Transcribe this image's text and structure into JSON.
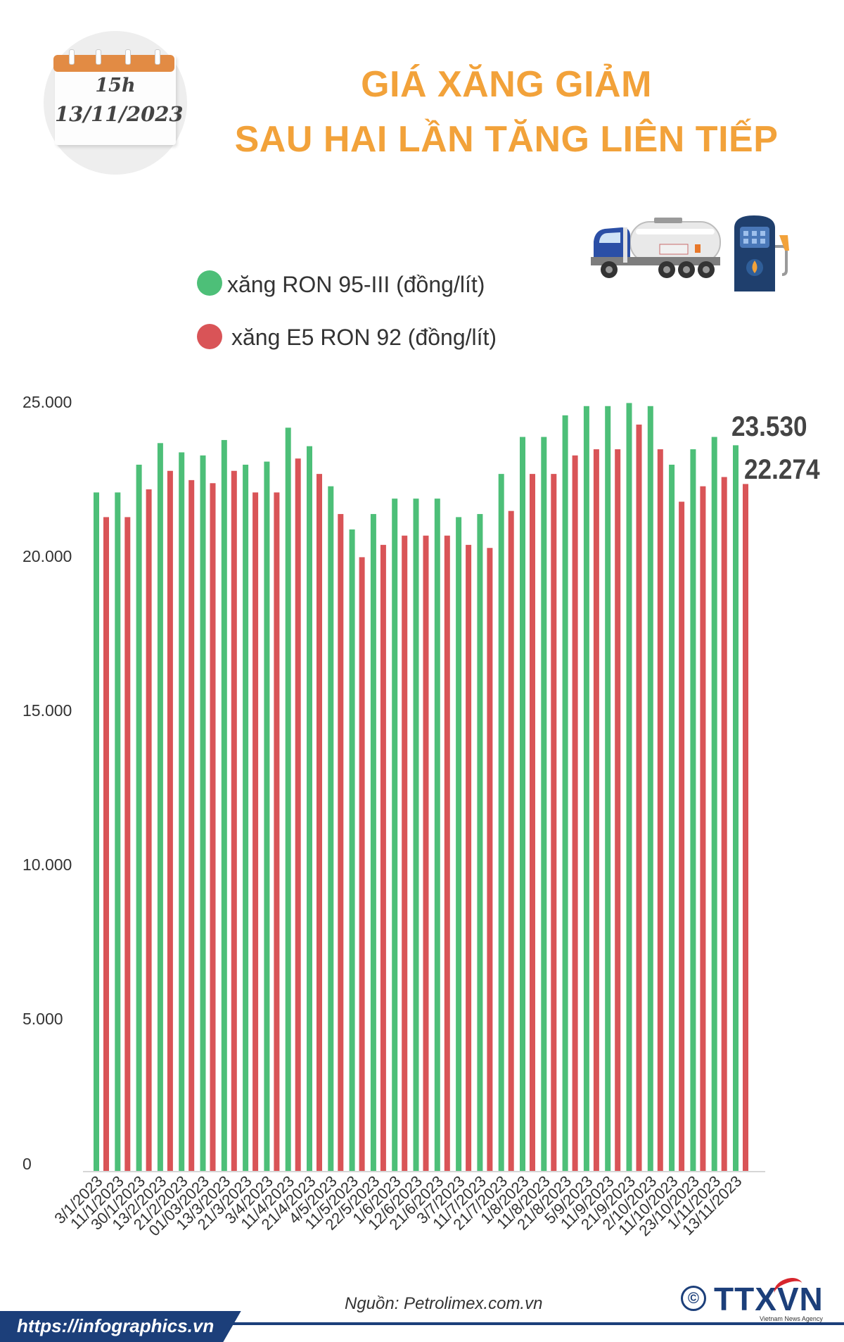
{
  "calendar": {
    "time": "15h",
    "date": "13/11/2023"
  },
  "title": {
    "line1": "GIÁ XĂNG GIẢM",
    "line2": "SAU HAI LẦN TĂNG LIÊN TIẾP"
  },
  "legend": [
    {
      "label": "xăng RON 95-III (đồng/lít)",
      "color": "#4dbf78"
    },
    {
      "label": "xăng E5 RON 92 (đồng/lít)",
      "color": "#d95457"
    }
  ],
  "chart_data": {
    "type": "bar",
    "title": "GIÁ XĂNG GIẢM SAU HAI LẦN TĂNG LIÊN TIẾP",
    "xlabel": "",
    "ylabel": "",
    "ylim": [
      0,
      25000
    ],
    "yticks": [
      "0",
      "5.000",
      "10.000",
      "15.000",
      "20.000",
      "25.000"
    ],
    "ytick_values": [
      0,
      5000,
      10000,
      15000,
      20000,
      25000
    ],
    "categories": [
      "3/1/2023",
      "11/1/2023",
      "30/1/2023",
      "13/2/2023",
      "21/2/2023",
      "01/03/2023",
      "13/3/2023",
      "21/3/2023",
      "3/4/2023",
      "11/4/2023",
      "21/4/2023",
      "4/5/2023",
      "11/5/2023",
      "22/5/2023",
      "1/6/2023",
      "12/6/2023",
      "21/6/2023",
      "3/7/2023",
      "11/7/2023",
      "21/7/2023",
      "1/8/2023",
      "11/8/2023",
      "21/8/2023",
      "5/9/2023",
      "11/9/2023",
      "21/9/2023",
      "2/10/2023",
      "11/10/2023",
      "23/10/2023",
      "1/11/2023",
      "13/11/2023"
    ],
    "series": [
      {
        "name": "xăng RON 95-III (đồng/lít)",
        "color": "#4dbf78",
        "values": [
          22000,
          22000,
          22900,
          23600,
          23300,
          23200,
          23700,
          22900,
          23000,
          24100,
          23500,
          22200,
          20800,
          21300,
          21800,
          21800,
          21800,
          21200,
          21300,
          22600,
          23800,
          23800,
          24500,
          24800,
          24800,
          24900,
          24800,
          22900,
          23400,
          23800,
          23530
        ]
      },
      {
        "name": "xăng E5 RON 92 (đồng/lít)",
        "color": "#d95457",
        "values": [
          21200,
          21200,
          22100,
          22700,
          22400,
          22300,
          22700,
          22000,
          22000,
          23100,
          22600,
          21300,
          19900,
          20300,
          20600,
          20600,
          20600,
          20300,
          20200,
          21400,
          22600,
          22600,
          23200,
          23400,
          23400,
          24200,
          23400,
          21700,
          22200,
          22500,
          22274
        ]
      }
    ],
    "annotations": [
      "23.530",
      "22.274"
    ],
    "grid": false,
    "legend_position": "top-left"
  },
  "source_text": "Nguồn: Petrolimex.com.vn",
  "footer": {
    "url": "https://infographics.vn",
    "copyright": "©",
    "logo": "TTXVN",
    "logo_sub": "Vietnam News Agency"
  },
  "icons": {
    "calendar": "calendar-icon",
    "truck": "tanker-truck-icon",
    "pump": "fuel-pump-icon"
  }
}
